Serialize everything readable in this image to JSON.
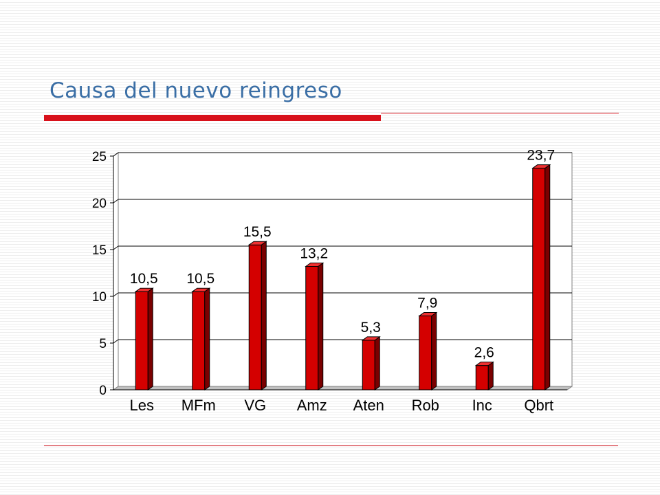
{
  "slide": {
    "title": "Causa del nuevo reingreso"
  },
  "chart_data": {
    "type": "bar",
    "categories": [
      "Les",
      "MFm",
      "VG",
      "Amz",
      "Aten",
      "Rob",
      "Inc",
      "Qbrt"
    ],
    "values": [
      10.5,
      10.5,
      15.5,
      13.2,
      5.3,
      7.9,
      2.6,
      23.7
    ],
    "data_labels": [
      "10,5",
      "10,5",
      "15,5",
      "13,2",
      "5,3",
      "7,9",
      "2,6",
      "23,7"
    ],
    "yticks": [
      0,
      5,
      10,
      15,
      20,
      25
    ],
    "ylim": [
      0,
      25
    ],
    "grid": true,
    "style": "3d-column",
    "colors": {
      "bar_front": "#d40000",
      "bar_side": "#7a0000",
      "bar_top": "#f03030"
    }
  }
}
